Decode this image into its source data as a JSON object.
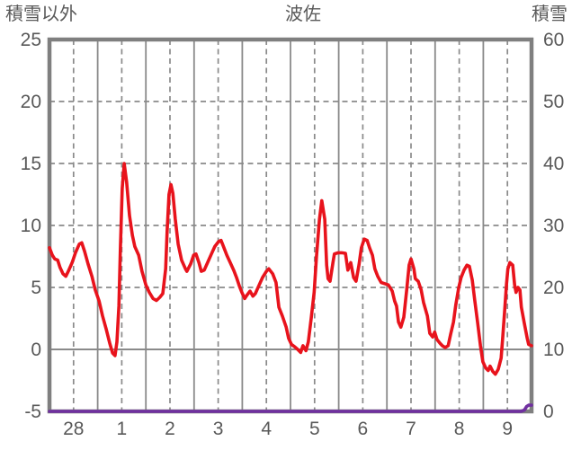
{
  "header": {
    "left_axis_title": "積雪以外",
    "chart_title": "波佐",
    "right_axis_title": "積雪"
  },
  "chart_data": {
    "type": "line",
    "title": "波佐",
    "left_axis": {
      "title": "積雪以外",
      "min": -5,
      "max": 25,
      "tick_interval": 5,
      "tick_labels": [
        "25",
        "20",
        "15",
        "10",
        "5",
        "0",
        "-5"
      ]
    },
    "right_axis": {
      "title": "積雪",
      "min": 0,
      "max": 60,
      "tick_interval": 10,
      "tick_labels": [
        "60",
        "50",
        "40",
        "30",
        "20",
        "10",
        "0"
      ]
    },
    "x_axis": {
      "num_days": 10,
      "tick_labels": [
        "28",
        "1",
        "2",
        "3",
        "4",
        "5",
        "6",
        "7",
        "8",
        "9"
      ],
      "grid_note": "solid line at each day boundary, dashed line at each midday"
    },
    "colors": {
      "temperature_line": "#e8131c",
      "snow_line": "#7030a0",
      "grid": "#8a8a8a",
      "border": "#7f7f7f",
      "label_text": "#595959",
      "background": "#ffffff"
    },
    "series": [
      {
        "name": "積雪以外",
        "axis": "left",
        "color_key": "temperature_line",
        "points": [
          [
            0.0,
            8.2
          ],
          [
            0.06,
            7.6
          ],
          [
            0.11,
            7.3
          ],
          [
            0.17,
            7.2
          ],
          [
            0.22,
            6.6
          ],
          [
            0.28,
            6.1
          ],
          [
            0.34,
            5.9
          ],
          [
            0.39,
            6.3
          ],
          [
            0.47,
            7.0
          ],
          [
            0.54,
            7.8
          ],
          [
            0.62,
            8.5
          ],
          [
            0.67,
            8.6
          ],
          [
            0.73,
            7.9
          ],
          [
            0.8,
            6.9
          ],
          [
            0.88,
            5.9
          ],
          [
            0.95,
            4.8
          ],
          [
            1.03,
            3.9
          ],
          [
            1.1,
            2.7
          ],
          [
            1.18,
            1.6
          ],
          [
            1.25,
            0.5
          ],
          [
            1.31,
            -0.3
          ],
          [
            1.36,
            -0.5
          ],
          [
            1.4,
            0.6
          ],
          [
            1.44,
            3.5
          ],
          [
            1.47,
            8.0
          ],
          [
            1.51,
            13.0
          ],
          [
            1.55,
            15.0
          ],
          [
            1.6,
            13.5
          ],
          [
            1.66,
            10.8
          ],
          [
            1.72,
            9.2
          ],
          [
            1.77,
            8.3
          ],
          [
            1.85,
            7.6
          ],
          [
            1.92,
            6.3
          ],
          [
            2.0,
            5.2
          ],
          [
            2.07,
            4.6
          ],
          [
            2.15,
            4.1
          ],
          [
            2.22,
            3.95
          ],
          [
            2.29,
            4.2
          ],
          [
            2.35,
            4.5
          ],
          [
            2.41,
            6.5
          ],
          [
            2.44,
            9.5
          ],
          [
            2.48,
            12.5
          ],
          [
            2.52,
            13.3
          ],
          [
            2.56,
            12.6
          ],
          [
            2.61,
            10.5
          ],
          [
            2.67,
            8.5
          ],
          [
            2.74,
            7.2
          ],
          [
            2.82,
            6.5
          ],
          [
            2.85,
            6.3
          ],
          [
            2.93,
            6.9
          ],
          [
            2.99,
            7.6
          ],
          [
            3.04,
            7.7
          ],
          [
            3.1,
            7.0
          ],
          [
            3.15,
            6.3
          ],
          [
            3.21,
            6.4
          ],
          [
            3.28,
            7.0
          ],
          [
            3.36,
            7.7
          ],
          [
            3.43,
            8.3
          ],
          [
            3.51,
            8.7
          ],
          [
            3.56,
            8.8
          ],
          [
            3.62,
            8.2
          ],
          [
            3.68,
            7.6
          ],
          [
            3.75,
            7.0
          ],
          [
            3.82,
            6.4
          ],
          [
            3.88,
            5.8
          ],
          [
            3.94,
            5.1
          ],
          [
            3.99,
            4.6
          ],
          [
            4.05,
            4.1
          ],
          [
            4.1,
            4.4
          ],
          [
            4.16,
            4.7
          ],
          [
            4.22,
            4.3
          ],
          [
            4.27,
            4.5
          ],
          [
            4.35,
            5.2
          ],
          [
            4.42,
            5.8
          ],
          [
            4.5,
            6.3
          ],
          [
            4.55,
            6.5
          ],
          [
            4.63,
            6.1
          ],
          [
            4.7,
            5.4
          ],
          [
            4.76,
            3.4
          ],
          [
            4.83,
            2.7
          ],
          [
            4.91,
            1.8
          ],
          [
            4.96,
            0.9
          ],
          [
            5.02,
            0.4
          ],
          [
            5.09,
            0.2
          ],
          [
            5.15,
            0.0
          ],
          [
            5.21,
            -0.25
          ],
          [
            5.26,
            0.3
          ],
          [
            5.32,
            -0.1
          ],
          [
            5.37,
            0.6
          ],
          [
            5.43,
            2.5
          ],
          [
            5.49,
            4.6
          ],
          [
            5.54,
            7.5
          ],
          [
            5.6,
            10.5
          ],
          [
            5.65,
            12.0
          ],
          [
            5.71,
            10.5
          ],
          [
            5.75,
            6.8
          ],
          [
            5.78,
            5.7
          ],
          [
            5.82,
            5.5
          ],
          [
            5.88,
            7.0
          ],
          [
            5.91,
            7.7
          ],
          [
            5.99,
            7.8
          ],
          [
            6.06,
            7.8
          ],
          [
            6.14,
            7.75
          ],
          [
            6.19,
            6.4
          ],
          [
            6.25,
            7.0
          ],
          [
            6.31,
            5.8
          ],
          [
            6.36,
            5.5
          ],
          [
            6.42,
            6.8
          ],
          [
            6.47,
            8.2
          ],
          [
            6.53,
            8.9
          ],
          [
            6.59,
            8.8
          ],
          [
            6.64,
            8.2
          ],
          [
            6.7,
            7.6
          ],
          [
            6.75,
            6.5
          ],
          [
            6.81,
            5.9
          ],
          [
            6.88,
            5.4
          ],
          [
            6.96,
            5.3
          ],
          [
            7.03,
            5.2
          ],
          [
            7.11,
            4.7
          ],
          [
            7.16,
            3.9
          ],
          [
            7.2,
            3.5
          ],
          [
            7.24,
            2.2
          ],
          [
            7.29,
            1.8
          ],
          [
            7.35,
            2.6
          ],
          [
            7.41,
            4.8
          ],
          [
            7.46,
            6.8
          ],
          [
            7.5,
            7.3
          ],
          [
            7.56,
            6.5
          ],
          [
            7.59,
            5.7
          ],
          [
            7.65,
            5.5
          ],
          [
            7.71,
            4.8
          ],
          [
            7.76,
            3.8
          ],
          [
            7.84,
            2.7
          ],
          [
            7.89,
            1.3
          ],
          [
            7.95,
            1.0
          ],
          [
            7.99,
            1.4
          ],
          [
            8.04,
            0.8
          ],
          [
            8.1,
            0.5
          ],
          [
            8.15,
            0.3
          ],
          [
            8.21,
            0.15
          ],
          [
            8.27,
            0.3
          ],
          [
            8.32,
            1.2
          ],
          [
            8.38,
            2.2
          ],
          [
            8.43,
            3.6
          ],
          [
            8.49,
            5.0
          ],
          [
            8.54,
            5.8
          ],
          [
            8.6,
            6.4
          ],
          [
            8.66,
            6.8
          ],
          [
            8.71,
            6.7
          ],
          [
            8.77,
            5.6
          ],
          [
            8.82,
            4.0
          ],
          [
            8.88,
            2.2
          ],
          [
            8.94,
            0.3
          ],
          [
            8.99,
            -1.0
          ],
          [
            9.05,
            -1.5
          ],
          [
            9.1,
            -1.7
          ],
          [
            9.14,
            -1.35
          ],
          [
            9.2,
            -1.8
          ],
          [
            9.25,
            -2.0
          ],
          [
            9.31,
            -1.6
          ],
          [
            9.37,
            -0.7
          ],
          [
            9.4,
            0.8
          ],
          [
            9.44,
            3.0
          ],
          [
            9.48,
            5.2
          ],
          [
            9.51,
            6.5
          ],
          [
            9.55,
            7.0
          ],
          [
            9.61,
            6.8
          ],
          [
            9.65,
            5.2
          ],
          [
            9.68,
            4.6
          ],
          [
            9.72,
            5.0
          ],
          [
            9.76,
            4.8
          ],
          [
            9.79,
            3.4
          ],
          [
            9.85,
            2.1
          ],
          [
            9.91,
            0.9
          ],
          [
            9.94,
            0.4
          ],
          [
            10.0,
            0.3
          ]
        ]
      },
      {
        "name": "積雪",
        "axis": "right",
        "color_key": "snow_line",
        "points": [
          [
            0.0,
            0
          ],
          [
            9.78,
            0
          ],
          [
            9.85,
            0.2
          ],
          [
            9.9,
            0.8
          ],
          [
            9.94,
            1.0
          ],
          [
            10.0,
            1.0
          ]
        ]
      }
    ]
  }
}
